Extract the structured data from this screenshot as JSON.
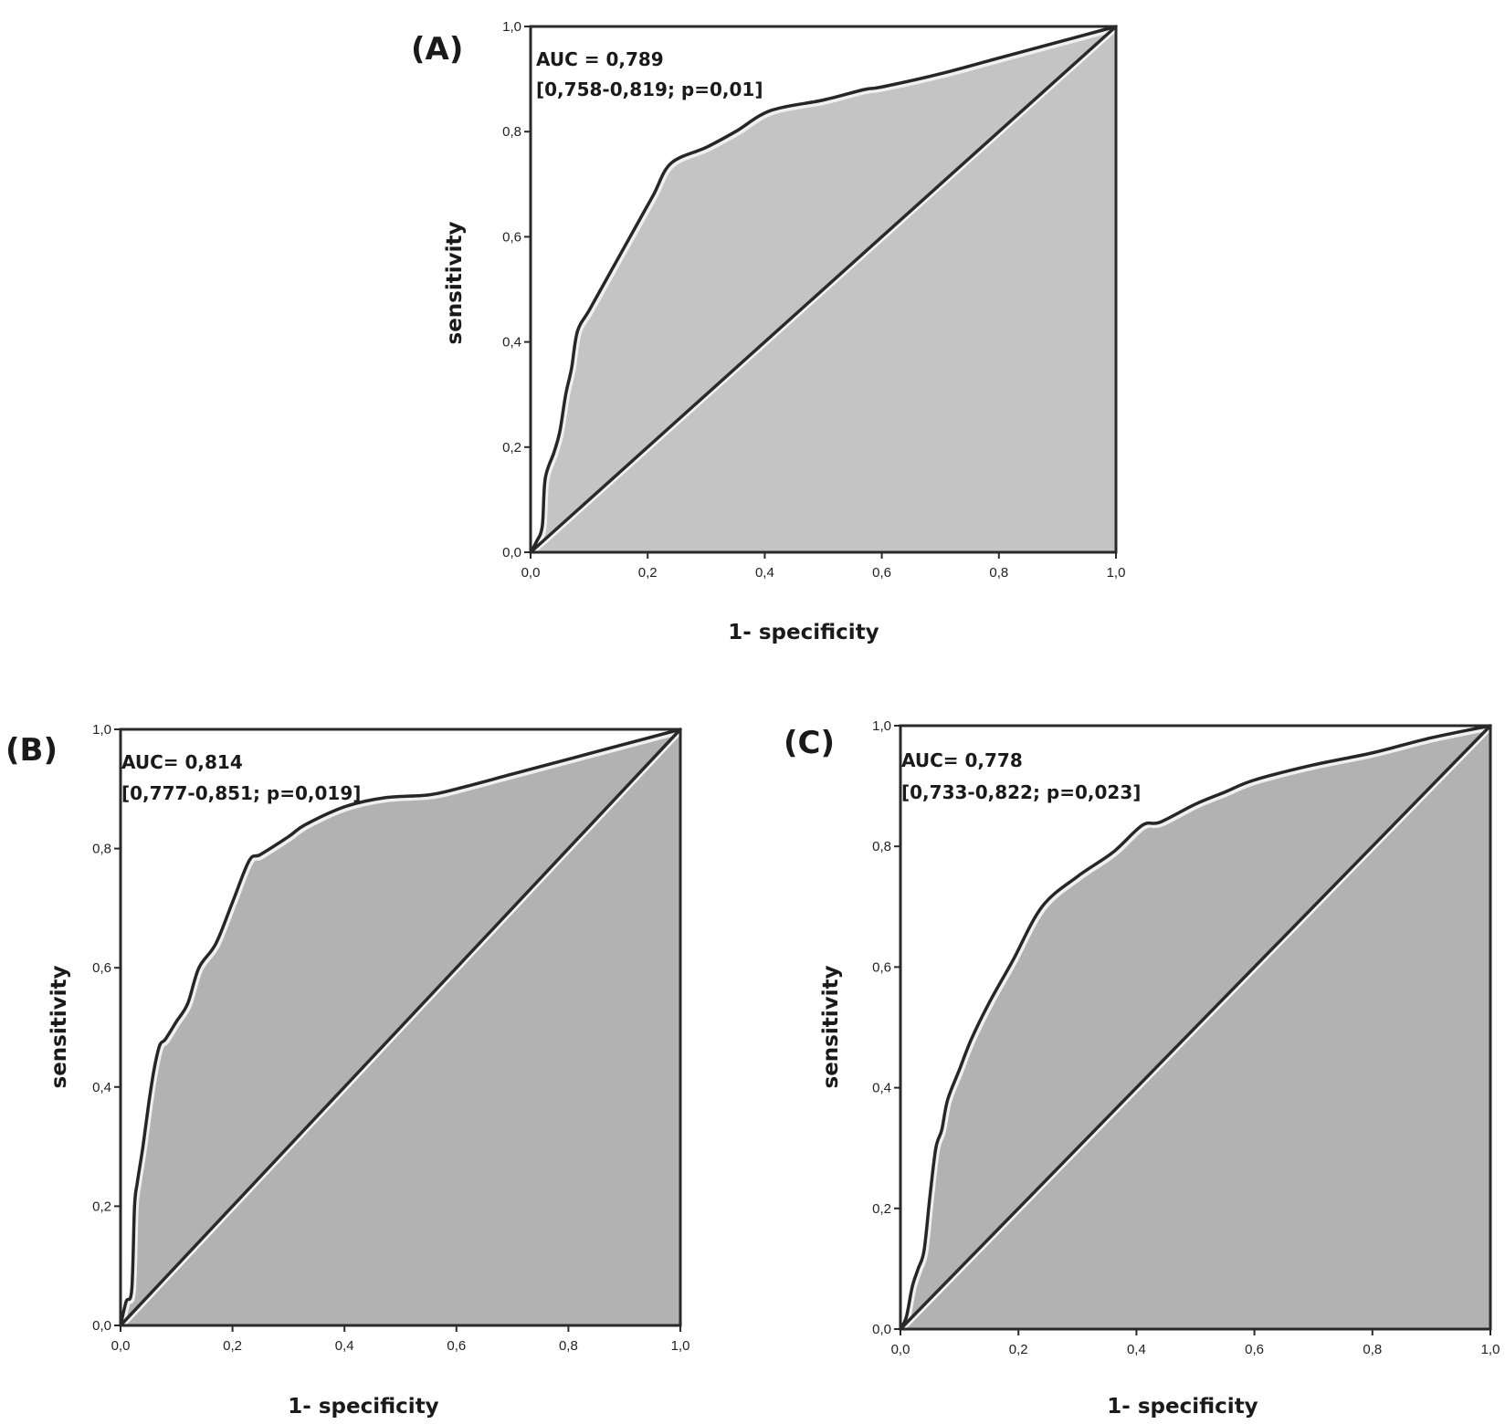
{
  "chart_data": [
    {
      "type": "line",
      "panel": "(A)",
      "xlabel": "1- specificity",
      "ylabel": "sensitivity",
      "xlim": [
        0,
        1
      ],
      "ylim": [
        0,
        1
      ],
      "x_ticks": [
        "0,0",
        "0,2",
        "0,4",
        "0,6",
        "0,8",
        "1,0"
      ],
      "y_ticks": [
        "0,0",
        "0,2",
        "0,4",
        "0,6",
        "0,8",
        "1,0"
      ],
      "annotations": [
        "AUC = 0,789",
        "[0,758-0,819; p=0,01]"
      ],
      "area_fill": "#c4c4c4",
      "series": [
        {
          "x": [
            0,
            0.01,
            0.02,
            0.025,
            0.04,
            0.05,
            0.06,
            0.07,
            0.08,
            0.1,
            0.13,
            0.15,
            0.18,
            0.21,
            0.24,
            0.3,
            0.35,
            0.41,
            0.5,
            0.57,
            0.6,
            0.7,
            0.8,
            0.9,
            1.0
          ],
          "y": [
            0,
            0.02,
            0.05,
            0.14,
            0.19,
            0.23,
            0.3,
            0.35,
            0.42,
            0.46,
            0.52,
            0.56,
            0.62,
            0.68,
            0.74,
            0.77,
            0.8,
            0.84,
            0.86,
            0.88,
            0.885,
            0.91,
            0.94,
            0.97,
            1.0
          ]
        },
        {
          "x": [
            0,
            1
          ],
          "y": [
            0,
            1
          ]
        }
      ]
    },
    {
      "type": "line",
      "panel": "(B)",
      "xlabel": "1- specificity",
      "ylabel": "sensitivity",
      "xlim": [
        0,
        1
      ],
      "ylim": [
        0,
        1
      ],
      "x_ticks": [
        "0,0",
        "0,2",
        "0,4",
        "0,6",
        "0,8",
        "1,0"
      ],
      "y_ticks": [
        "0,0",
        "0,2",
        "0,4",
        "0,6",
        "0,8",
        "1,0"
      ],
      "annotations": [
        "AUC= 0,814",
        "[0,777-0,851; p=0,019]"
      ],
      "area_fill": "#b2b2b2",
      "series": [
        {
          "x": [
            0,
            0.01,
            0.02,
            0.025,
            0.03,
            0.04,
            0.05,
            0.06,
            0.07,
            0.08,
            0.1,
            0.12,
            0.14,
            0.17,
            0.2,
            0.23,
            0.25,
            0.3,
            0.33,
            0.4,
            0.47,
            0.55,
            0.6,
            0.7,
            0.8,
            0.9,
            1.0
          ],
          "y": [
            0,
            0.04,
            0.06,
            0.2,
            0.24,
            0.3,
            0.37,
            0.43,
            0.47,
            0.48,
            0.51,
            0.54,
            0.6,
            0.64,
            0.71,
            0.78,
            0.79,
            0.82,
            0.84,
            0.87,
            0.885,
            0.89,
            0.9,
            0.925,
            0.95,
            0.975,
            1.0
          ]
        },
        {
          "x": [
            0,
            1
          ],
          "y": [
            0,
            1
          ]
        }
      ]
    },
    {
      "type": "line",
      "panel": "(C)",
      "xlabel": "1- specificity",
      "ylabel": "sensitivity",
      "xlim": [
        0,
        1
      ],
      "ylim": [
        0,
        1
      ],
      "x_ticks": [
        "0,0",
        "0,2",
        "0,4",
        "0,6",
        "0,8",
        "1,0"
      ],
      "y_ticks": [
        "0,0",
        "0,2",
        "0,4",
        "0,6",
        "0,8",
        "1,0"
      ],
      "annotations": [
        "AUC= 0,778",
        "[0,733-0,822; p=0,023]"
      ],
      "area_fill": "#b2b2b2",
      "series": [
        {
          "x": [
            0,
            0.01,
            0.02,
            0.03,
            0.04,
            0.05,
            0.06,
            0.07,
            0.08,
            0.1,
            0.12,
            0.15,
            0.19,
            0.24,
            0.3,
            0.36,
            0.41,
            0.44,
            0.5,
            0.55,
            0.6,
            0.7,
            0.8,
            0.9,
            1.0
          ],
          "y": [
            0,
            0.02,
            0.07,
            0.1,
            0.13,
            0.22,
            0.3,
            0.33,
            0.38,
            0.43,
            0.48,
            0.54,
            0.61,
            0.7,
            0.75,
            0.79,
            0.835,
            0.84,
            0.87,
            0.89,
            0.91,
            0.935,
            0.955,
            0.98,
            1.0
          ]
        },
        {
          "x": [
            0,
            1
          ],
          "y": [
            0,
            1
          ]
        }
      ]
    }
  ]
}
